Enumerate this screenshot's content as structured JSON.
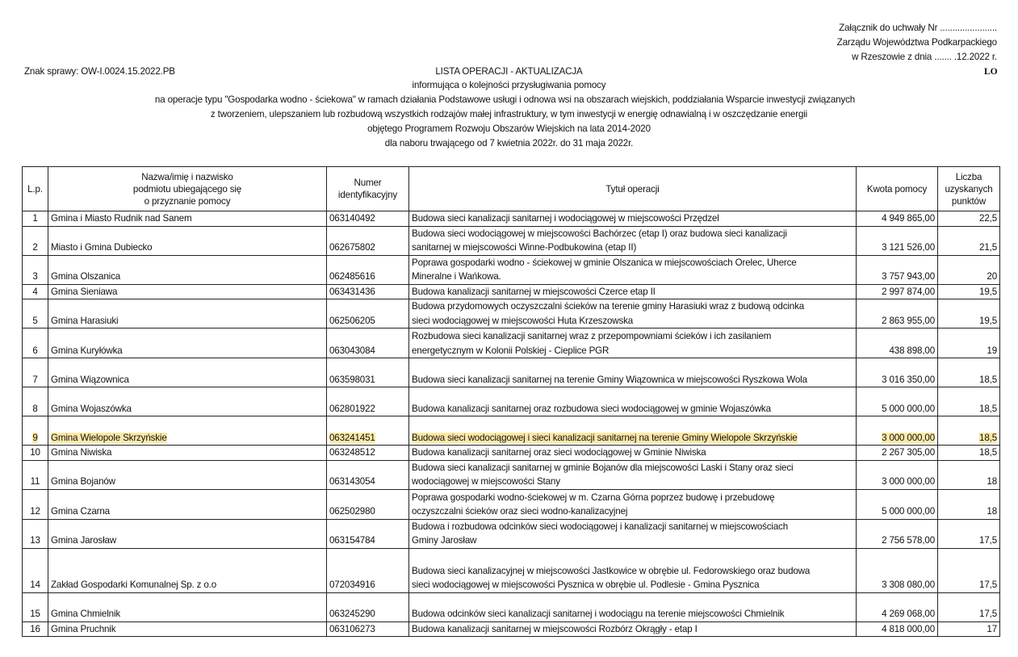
{
  "header": {
    "annex_line1": "Załącznik do uchwały Nr .......................",
    "annex_line2": "Zarządu Województwa Podkarpackiego",
    "annex_line3": "w Rzeszowie z dnia ....... .12.2022 r.",
    "case_number": "Znak sprawy: OW-I.0024.15.2022.PB",
    "code": "LO",
    "title": "LISTA OPERACJI - AKTUALIZACJA",
    "subtitle_lines": [
      "informująca o kolejności przysługiwania pomocy",
      "na operacje typu \"Gospodarka wodno - ściekowa\" w ramach działania Podstawowe usługi i odnowa wsi na obszarach wiejskich, poddziałania Wsparcie inwestycji związanych",
      "z tworzeniem, ulepszaniem lub rozbudową wszystkich rodzajów małej infrastruktury, w tym inwestycji w energię odnawialną i w oszczędzanie energii",
      "objętego Programem Rozwoju Obszarów Wiejskich na lata 2014-2020",
      "dla naboru trwającego od 7 kwietnia 2022r. do 31 maja 2022r."
    ]
  },
  "table": {
    "columns": [
      [
        "L.p."
      ],
      [
        "Nazwa/imię i nazwisko",
        "podmiotu ubiegającego się",
        "o przyznanie pomocy"
      ],
      [
        "Numer",
        "identyfikacyjny"
      ],
      [
        "Tytuł operacji"
      ],
      [
        "Kwota pomocy"
      ],
      [
        "Liczba",
        "uzyskanych",
        "punktów"
      ]
    ],
    "highlight_color": "#fde9a6",
    "rows": [
      {
        "lp": "1",
        "name": "Gmina i Miasto Rudnik nad Sanem",
        "id": "063140492",
        "title": [
          "Budowa sieci kanalizacji sanitarnej i wodociągowej w miejscowości Przędzel"
        ],
        "amount": "4 949 865,00",
        "points": "22,5"
      },
      {
        "lp": "2",
        "name": "Miasto i Gmina Dubiecko",
        "id": "062675802",
        "title": [
          "Budowa sieci wodociągowej w miejscowości Bachórzec (etap I) oraz budowa sieci kanalizacji",
          "sanitarnej w miejscowości Winne-Podbukowina (etap II)"
        ],
        "amount": "3 121 526,00",
        "points": "21,5"
      },
      {
        "lp": "3",
        "name": "Gmina Olszanica",
        "id": "062485616",
        "title": [
          "Poprawa gospodarki wodno - ściekowej w gminie Olszanica w miejscowościach Orelec, Uherce",
          "Mineralne i Wańkowa."
        ],
        "amount": "3 757 943,00",
        "points": "20"
      },
      {
        "lp": "4",
        "name": "Gmina Sieniawa",
        "id": "063431436",
        "title": [
          "Budowa kanalizacji sanitarnej w miejscowości Czerce etap II"
        ],
        "amount": "2 997 874,00",
        "points": "19,5"
      },
      {
        "lp": "5",
        "name": "Gmina Harasiuki",
        "id": "062506205",
        "title": [
          "Budowa przydomowych oczyszczalni ścieków na terenie gminy Harasiuki wraz z budową odcinka",
          "sieci wodociągowej w miejscowości Huta Krzeszowska"
        ],
        "amount": "2 863 955,00",
        "points": "19,5"
      },
      {
        "lp": "6",
        "name": "Gmina Kuryłówka",
        "id": "063043084",
        "title": [
          "Rozbudowa sieci kanalizacji sanitarnej wraz z przepompowniami ścieków i ich zasilaniem",
          "energetycznym w Kolonii Polskiej - Cieplice PGR"
        ],
        "amount": "438 898,00",
        "points": "19"
      },
      {
        "lp": "7",
        "name": "Gmina Wiązownica",
        "id": "063598031",
        "title": [
          "Budowa sieci kanalizacji sanitarnej na terenie Gminy Wiązownica w miejscowości Ryszkowa Wola"
        ],
        "amount": "3 016 350,00",
        "points": "18,5"
      },
      {
        "lp": "8",
        "name": "Gmina Wojaszówka",
        "id": "062801922",
        "title": [
          "Budowa kanalizacji sanitarnej oraz rozbudowa sieci wodociągowej w gminie Wojaszówka"
        ],
        "amount": "5 000 000,00",
        "points": "18,5"
      },
      {
        "lp": "9",
        "name": "Gmina Wielopole Skrzyńskie",
        "id": "063241451",
        "title": [
          "Budowa sieci wodociągowej i sieci kanalizacji sanitarnej na terenie Gminy Wielopole Skrzyńskie"
        ],
        "amount": "3 000 000,00",
        "points": "18,5",
        "highlighted": true
      },
      {
        "lp": "10",
        "name": "Gmina Niwiska",
        "id": "063248512",
        "title": [
          "Budowa kanalizacji sanitarnej oraz sieci wodociągowej w Gminie Niwiska"
        ],
        "amount": "2 267 305,00",
        "points": "18,5"
      },
      {
        "lp": "11",
        "name": "Gmina Bojanów",
        "id": "063143054",
        "title": [
          "Budowa sieci kanalizacji sanitarnej w gminie Bojanów dla miejscowości Laski i Stany oraz sieci",
          "wodociągowej w miejscowości Stany"
        ],
        "amount": "3 000 000,00",
        "points": "18"
      },
      {
        "lp": "12",
        "name": "Gmina Czarna",
        "id": "062502980",
        "title": [
          "Poprawa gospodarki wodno-ściekowej w m. Czarna Górna poprzez budowę i przebudowę",
          "oczyszczalni ścieków oraz sieci wodno-kanalizacyjnej"
        ],
        "amount": "5 000 000,00",
        "points": "18"
      },
      {
        "lp": "13",
        "name": "Gmina Jarosław",
        "id": "063154784",
        "title": [
          "Budowa i rozbudowa odcinków sieci wodociągowej i kanalizacji sanitarnej w miejscowościach",
          "Gminy Jarosław"
        ],
        "amount": "2 756 578,00",
        "points": "17,5"
      },
      {
        "lp": "14",
        "name": "Zakład Gospodarki Komunalnej Sp. z o.o",
        "id": "072034916",
        "title": [
          "Budowa sieci kanalizacyjnej w miejscowości Jastkowice w obrębie ul. Fedorowskiego oraz budowa",
          "sieci wodociągowej w miejscowości Pysznica w obrębie ul. Podlesie - Gmina Pysznica"
        ],
        "amount": "3 308 080,00",
        "points": "17,5"
      },
      {
        "lp": "15",
        "name": "Gmina Chmielnik",
        "id": "063245290",
        "title": [
          "Budowa odcinków sieci kanalizacji sanitarnej i wodociągu na terenie miejscowości Chmielnik"
        ],
        "amount": "4 269 068,00",
        "points": "17,5"
      },
      {
        "lp": "16",
        "name": "Gmina Pruchnik",
        "id": "063106273",
        "title": [
          "Budowa kanalizacji sanitarnej w miejscowości Rozbórz Okrągły - etap I"
        ],
        "amount": "4 818 000,00",
        "points": "17"
      }
    ]
  }
}
